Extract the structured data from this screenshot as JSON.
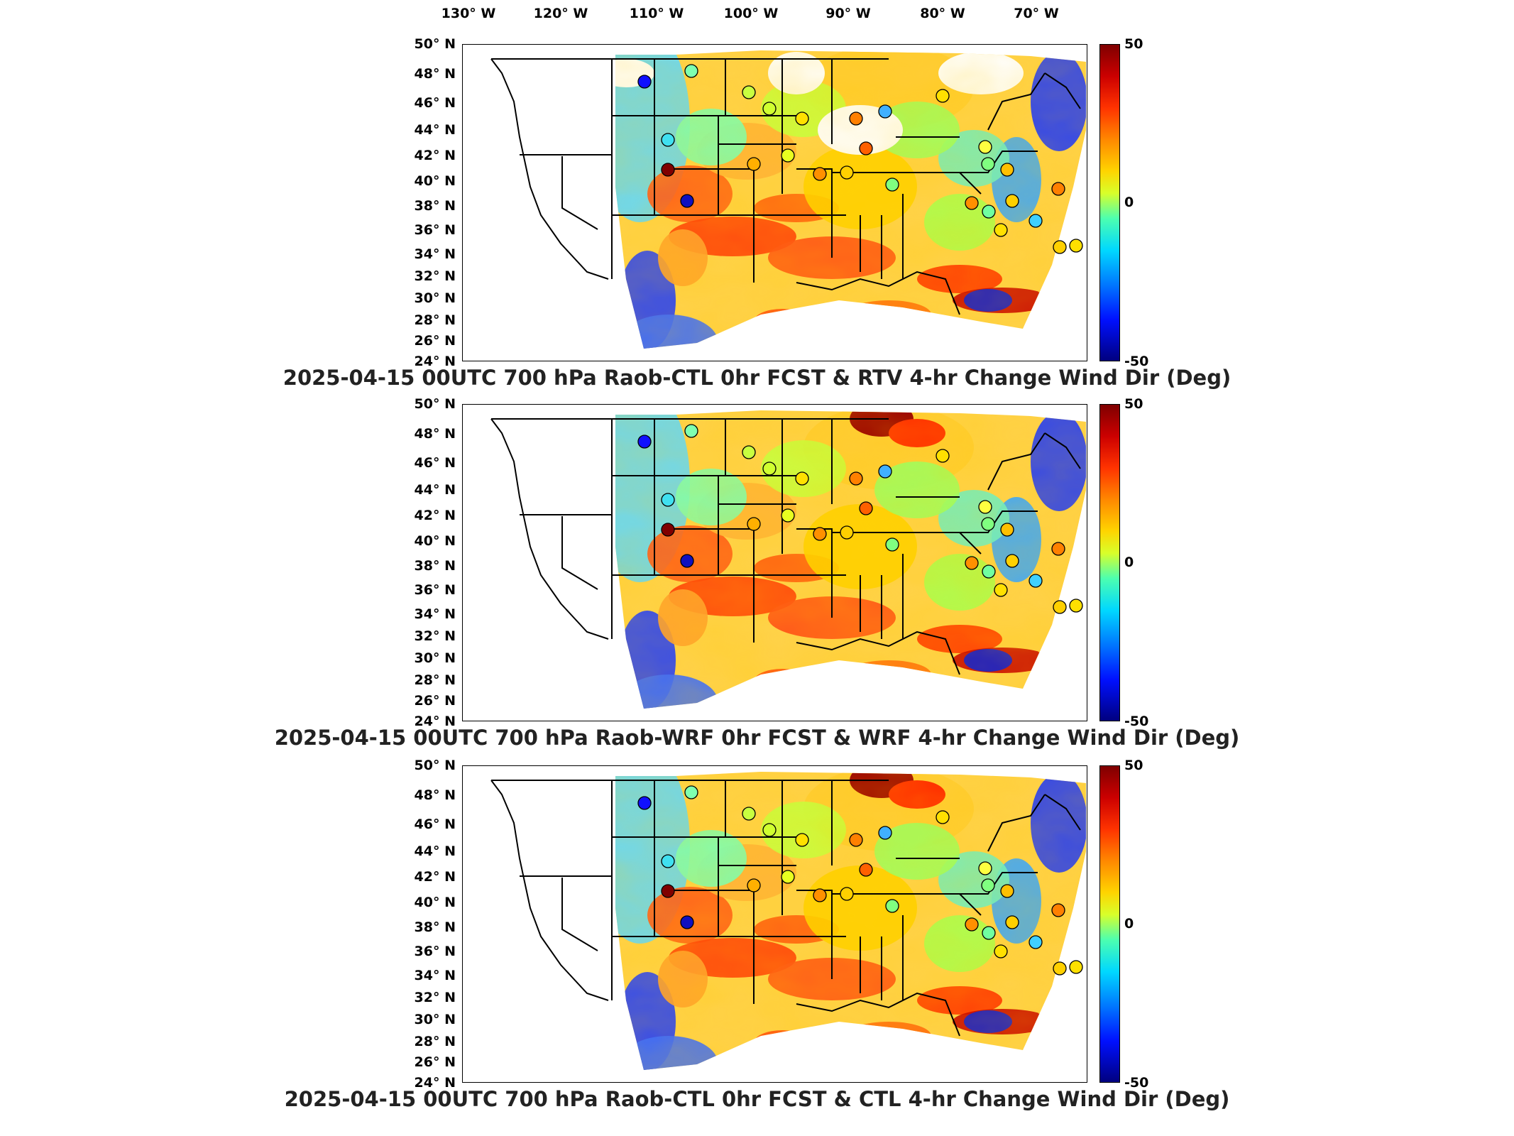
{
  "longitude_labels": [
    "130° W",
    "120° W",
    "110° W",
    "100° W",
    "90° W",
    "80° W",
    "70° W"
  ],
  "latitude_labels": [
    "50° N",
    "48° N",
    "46° N",
    "44° N",
    "42° N",
    "40° N",
    "38° N",
    "36° N",
    "34° N",
    "32° N",
    "30° N",
    "28° N",
    "26° N",
    "24° N"
  ],
  "colorbar": {
    "max_label": "50",
    "mid_label": "0",
    "min_label": "-50",
    "colors": [
      "#7f0000",
      "#cc0000",
      "#ff3300",
      "#ff8800",
      "#ffd400",
      "#d8ff2a",
      "#4cffb0",
      "#00d8ff",
      "#0080ff",
      "#0010ff",
      "#00007f"
    ]
  },
  "panels": [
    {
      "title": "2025-04-15 00UTC 700 hPa Raob-CTL 0hr FCST & RTV 4-hr Change Wind Dir (Deg)"
    },
    {
      "title": "2025-04-15 00UTC 700 hPa Raob-WRF 0hr FCST & WRF 4-hr Change Wind Dir (Deg)"
    },
    {
      "title": "2025-04-15 00UTC 700 hPa Raob-CTL 0hr FCST & CTL 4-hr Change Wind Dir (Deg)"
    }
  ],
  "raob_stations": [
    {
      "id": "s1",
      "color": "#1010ff"
    },
    {
      "id": "s2",
      "color": "#7fffb0"
    },
    {
      "id": "s3",
      "color": "#c8ff40"
    },
    {
      "id": "s4",
      "color": "#d0ff30"
    },
    {
      "id": "s5",
      "color": "#ffe000"
    },
    {
      "id": "s6",
      "color": "#40e0f0"
    },
    {
      "id": "s7",
      "color": "#800000"
    },
    {
      "id": "s8",
      "color": "#1010c0"
    },
    {
      "id": "s9",
      "color": "#ffb000"
    },
    {
      "id": "s10",
      "color": "#e8ff20"
    },
    {
      "id": "s11",
      "color": "#ff9000"
    },
    {
      "id": "s12",
      "color": "#ff8000"
    },
    {
      "id": "s13",
      "color": "#40b0ff"
    },
    {
      "id": "s14",
      "color": "#ff6000"
    },
    {
      "id": "s15",
      "color": "#ffd000"
    },
    {
      "id": "s16",
      "color": "#80ff80"
    },
    {
      "id": "s17",
      "color": "#ffe000"
    },
    {
      "id": "s18",
      "color": "#ffff40"
    },
    {
      "id": "s19",
      "color": "#ffc000"
    },
    {
      "id": "s20",
      "color": "#80ff80"
    },
    {
      "id": "s21",
      "color": "#ffd000"
    },
    {
      "id": "s22",
      "color": "#ff9000"
    },
    {
      "id": "s23",
      "color": "#70ffa0"
    },
    {
      "id": "s24",
      "color": "#ffe000"
    },
    {
      "id": "s25",
      "color": "#40d0ff"
    },
    {
      "id": "s26",
      "color": "#ff8000"
    },
    {
      "id": "s27",
      "color": "#ffe000"
    },
    {
      "id": "s28",
      "color": "#40ffc0"
    },
    {
      "id": "s29",
      "color": "#ffd000"
    }
  ]
}
